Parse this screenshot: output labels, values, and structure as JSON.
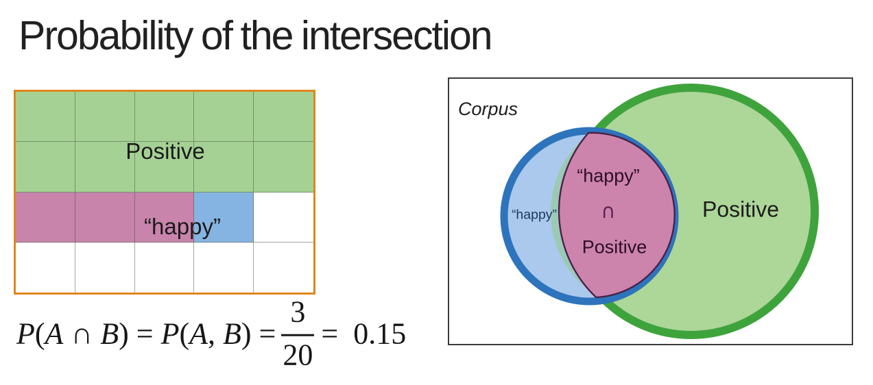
{
  "title": "Probability of the intersection",
  "colors": {
    "white": "#ffffff",
    "grid_green": "#a5d294",
    "grid_pink": "#c884ab",
    "grid_blue": "#86b4e2",
    "grid_border_orange": "#e0861c",
    "grid_line_gray": "#7b7b7b",
    "venn_green_fill": "#aed797",
    "venn_green_stroke": "#3fa33c",
    "venn_blue_fill": "#aac9ec",
    "venn_blue_stroke": "#2e74bc",
    "venn_overlap_teal": "#9bcab4",
    "venn_intersection_pink": "#cc84ad",
    "venn_intersection_outline": "#4a2149",
    "venn_box_border": "#3a3a3a"
  },
  "grid": {
    "rows": 4,
    "cols": 5,
    "cells": [
      [
        "grid_green",
        "grid_green",
        "grid_green",
        "grid_green",
        "grid_green"
      ],
      [
        "grid_green",
        "grid_green",
        "grid_green",
        "grid_green",
        "grid_green"
      ],
      [
        "grid_pink",
        "grid_pink",
        "grid_pink",
        "grid_blue",
        "white"
      ],
      [
        "white",
        "white",
        "white",
        "white",
        "white"
      ]
    ],
    "positive_label": "Positive",
    "happy_label": "“happy”"
  },
  "formula": {
    "tokens_before": [
      {
        "t": "P",
        "i": true
      },
      {
        "t": "(",
        "i": false
      },
      {
        "t": "A",
        "i": true
      },
      {
        "t": " ∩ ",
        "i": false
      },
      {
        "t": "B",
        "i": true
      },
      {
        "t": ") = ",
        "i": false
      },
      {
        "t": "P",
        "i": true
      },
      {
        "t": "(",
        "i": false
      },
      {
        "t": "A",
        "i": true
      },
      {
        "t": ", ",
        "i": false
      },
      {
        "t": "B",
        "i": true
      },
      {
        "t": ") =",
        "i": false
      }
    ],
    "numerator": "3",
    "denominator": "20",
    "tokens_after": [
      {
        "t": "=  0.15",
        "i": false
      }
    ]
  },
  "venn": {
    "corpus_label": "Corpus",
    "intersection_label_top": "“happy”",
    "intersection_operator": "∩",
    "intersection_label_bottom": "Positive",
    "happy_circle_label": "“happy”",
    "positive_circle_label": "Positive"
  }
}
